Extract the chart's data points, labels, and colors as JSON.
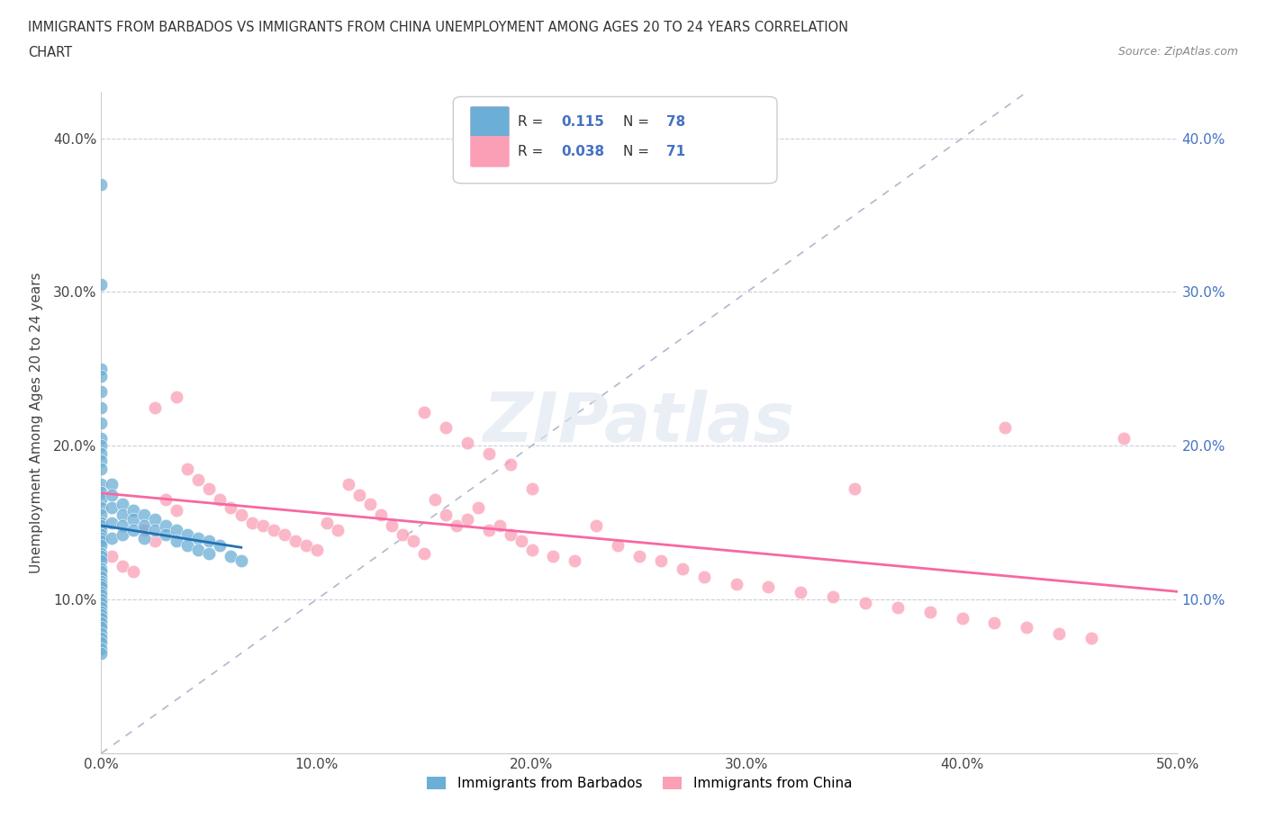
{
  "title_line1": "IMMIGRANTS FROM BARBADOS VS IMMIGRANTS FROM CHINA UNEMPLOYMENT AMONG AGES 20 TO 24 YEARS CORRELATION",
  "title_line2": "CHART",
  "source_text": "Source: ZipAtlas.com",
  "ylabel": "Unemployment Among Ages 20 to 24 years",
  "xlim": [
    0.0,
    0.5
  ],
  "ylim": [
    0.0,
    0.43
  ],
  "xticks": [
    0.0,
    0.1,
    0.2,
    0.3,
    0.4,
    0.5
  ],
  "xticklabels": [
    "0.0%",
    "10.0%",
    "20.0%",
    "30.0%",
    "40.0%",
    "50.0%"
  ],
  "yticks": [
    0.0,
    0.1,
    0.2,
    0.3,
    0.4
  ],
  "yticklabels": [
    "",
    "10.0%",
    "20.0%",
    "30.0%",
    "40.0%"
  ],
  "right_yticklabels": [
    "",
    "10.0%",
    "20.0%",
    "30.0%",
    "40.0%"
  ],
  "barbados_color": "#6baed6",
  "china_color": "#fa9fb5",
  "barbados_line_color": "#2171b5",
  "china_line_color": "#f768a1",
  "barbados_R": 0.115,
  "barbados_N": 78,
  "china_R": 0.038,
  "china_N": 71,
  "legend_label_barbados": "Immigrants from Barbados",
  "legend_label_china": "Immigrants from China",
  "watermark": "ZIPatlas",
  "barbados_x": [
    0.0,
    0.0,
    0.0,
    0.0,
    0.0,
    0.0,
    0.0,
    0.0,
    0.0,
    0.0,
    0.0,
    0.0,
    0.0,
    0.0,
    0.0,
    0.0,
    0.0,
    0.0,
    0.0,
    0.0,
    0.0,
    0.0,
    0.0,
    0.0,
    0.0,
    0.0,
    0.0,
    0.0,
    0.0,
    0.0,
    0.0,
    0.0,
    0.0,
    0.0,
    0.0,
    0.0,
    0.0,
    0.0,
    0.0,
    0.0,
    0.005,
    0.005,
    0.005,
    0.005,
    0.005,
    0.01,
    0.01,
    0.01,
    0.01,
    0.015,
    0.015,
    0.015,
    0.02,
    0.02,
    0.02,
    0.025,
    0.025,
    0.03,
    0.03,
    0.035,
    0.035,
    0.04,
    0.04,
    0.045,
    0.045,
    0.05,
    0.05,
    0.055,
    0.06,
    0.065,
    0.0,
    0.0,
    0.0,
    0.0,
    0.0,
    0.0,
    0.0,
    0.0
  ],
  "barbados_y": [
    0.37,
    0.305,
    0.25,
    0.245,
    0.235,
    0.225,
    0.215,
    0.205,
    0.2,
    0.195,
    0.19,
    0.185,
    0.175,
    0.17,
    0.165,
    0.16,
    0.155,
    0.15,
    0.148,
    0.145,
    0.142,
    0.14,
    0.138,
    0.135,
    0.13,
    0.128,
    0.125,
    0.12,
    0.118,
    0.115,
    0.112,
    0.11,
    0.108,
    0.105,
    0.103,
    0.1,
    0.098,
    0.095,
    0.092,
    0.09,
    0.175,
    0.168,
    0.16,
    0.15,
    0.14,
    0.162,
    0.155,
    0.148,
    0.142,
    0.158,
    0.152,
    0.145,
    0.155,
    0.148,
    0.14,
    0.152,
    0.145,
    0.148,
    0.142,
    0.145,
    0.138,
    0.142,
    0.135,
    0.14,
    0.132,
    0.138,
    0.13,
    0.135,
    0.128,
    0.125,
    0.088,
    0.085,
    0.082,
    0.078,
    0.075,
    0.072,
    0.068,
    0.065
  ],
  "china_x": [
    0.005,
    0.01,
    0.015,
    0.02,
    0.025,
    0.03,
    0.035,
    0.04,
    0.045,
    0.05,
    0.055,
    0.06,
    0.065,
    0.07,
    0.075,
    0.08,
    0.085,
    0.09,
    0.095,
    0.1,
    0.105,
    0.11,
    0.115,
    0.12,
    0.125,
    0.13,
    0.135,
    0.14,
    0.145,
    0.15,
    0.155,
    0.16,
    0.165,
    0.17,
    0.175,
    0.18,
    0.185,
    0.19,
    0.195,
    0.2,
    0.21,
    0.22,
    0.23,
    0.24,
    0.25,
    0.26,
    0.27,
    0.28,
    0.295,
    0.31,
    0.325,
    0.34,
    0.355,
    0.37,
    0.385,
    0.4,
    0.415,
    0.43,
    0.445,
    0.46,
    0.15,
    0.16,
    0.17,
    0.18,
    0.19,
    0.2,
    0.35,
    0.42,
    0.475,
    0.025,
    0.035
  ],
  "china_y": [
    0.128,
    0.122,
    0.118,
    0.145,
    0.138,
    0.165,
    0.158,
    0.185,
    0.178,
    0.172,
    0.165,
    0.16,
    0.155,
    0.15,
    0.148,
    0.145,
    0.142,
    0.138,
    0.135,
    0.132,
    0.15,
    0.145,
    0.175,
    0.168,
    0.162,
    0.155,
    0.148,
    0.142,
    0.138,
    0.13,
    0.165,
    0.155,
    0.148,
    0.152,
    0.16,
    0.145,
    0.148,
    0.142,
    0.138,
    0.132,
    0.128,
    0.125,
    0.148,
    0.135,
    0.128,
    0.125,
    0.12,
    0.115,
    0.11,
    0.108,
    0.105,
    0.102,
    0.098,
    0.095,
    0.092,
    0.088,
    0.085,
    0.082,
    0.078,
    0.075,
    0.222,
    0.212,
    0.202,
    0.195,
    0.188,
    0.172,
    0.172,
    0.212,
    0.205,
    0.225,
    0.232
  ]
}
